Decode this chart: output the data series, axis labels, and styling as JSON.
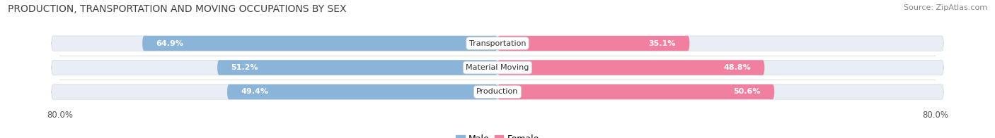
{
  "title": "PRODUCTION, TRANSPORTATION AND MOVING OCCUPATIONS BY SEX",
  "source": "Source: ZipAtlas.com",
  "categories": [
    "Transportation",
    "Material Moving",
    "Production"
  ],
  "male_values": [
    64.9,
    51.2,
    49.4
  ],
  "female_values": [
    35.1,
    48.8,
    50.6
  ],
  "male_color": "#8ab4d8",
  "female_color": "#f07fa0",
  "bar_bg_color": "#e8eef4",
  "axis_min": -80.0,
  "axis_max": 80.0,
  "title_fontsize": 10,
  "source_fontsize": 8,
  "tick_fontsize": 8.5,
  "bar_label_fontsize": 8,
  "cat_label_fontsize": 8,
  "legend_fontsize": 9,
  "bar_height": 0.62,
  "background_color": "#ffffff"
}
